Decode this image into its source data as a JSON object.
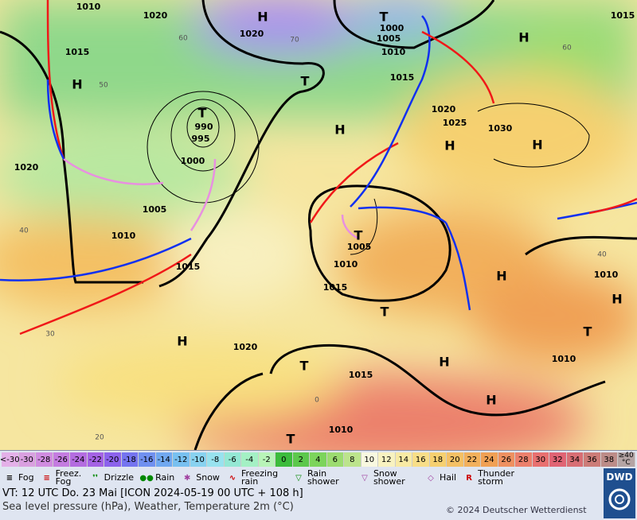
{
  "map": {
    "pressure_labels": [
      "1010",
      "1020",
      "1015",
      "1020",
      "1000",
      "1005",
      "1010",
      "1015",
      "1015",
      "1020",
      "1025",
      "1030",
      "990",
      "995",
      "1000",
      "1020",
      "1005",
      "1010",
      "1015",
      "1005",
      "1010",
      "1015",
      "1020",
      "1015",
      "1010",
      "1010",
      "1010"
    ],
    "system_labels": [
      "H",
      "H",
      "H",
      "H",
      "H",
      "H",
      "H",
      "H",
      "H",
      "H",
      "H",
      "T",
      "T",
      "T",
      "T",
      "T",
      "T",
      "T",
      "T"
    ],
    "isotherm_labels": [
      "60",
      "70",
      "50",
      "40",
      "30",
      "20",
      "40",
      "60",
      "0"
    ]
  },
  "temperature_scale": {
    "low_label": "<-30",
    "values": [
      -30,
      -28,
      -26,
      -24,
      -22,
      -20,
      -18,
      -16,
      -14,
      -12,
      -10,
      -8,
      -6,
      -4,
      -2,
      0,
      2,
      4,
      6,
      8,
      10,
      12,
      14,
      16,
      18,
      20,
      22,
      24,
      26,
      28,
      30,
      32,
      34,
      36,
      38
    ],
    "high_label": "≥40 °C",
    "colors": [
      "#d9a0e0",
      "#d08ce0",
      "#c47ce0",
      "#b46ce0",
      "#a462e4",
      "#8c62ec",
      "#7474f0",
      "#7090f0",
      "#70a8f0",
      "#78c0f0",
      "#88d2f0",
      "#98e2ee",
      "#94e8d4",
      "#a4f0c4",
      "#b8f4b8",
      "#3cbc3c",
      "#5cc84c",
      "#7cd45c",
      "#9cdc70",
      "#bce48c",
      "#f8f8e0",
      "#f8f2c0",
      "#f8eaa4",
      "#f8de88",
      "#f6d070",
      "#f4c064",
      "#f2b05c",
      "#f0a054",
      "#ee9060",
      "#ec806c",
      "#e87070",
      "#e06474",
      "#d86e74",
      "#cc7c78",
      "#bc8c88"
    ],
    "low_color": "#e4b0e8",
    "high_color": "#b4a4a4"
  },
  "weather_legend": [
    "Fog",
    "Freez. Fog",
    "Drizzle",
    "Rain",
    "Snow",
    "Freezing rain",
    "Rain shower",
    "Snow shower",
    "Hail",
    "Thunder storm"
  ],
  "footer": {
    "valid_time": "VT: 12 UTC Do.  23 Mai [ICON 2024-05-19  00 UTC + 108 h]",
    "description": "Sea level pressure (hPa), Weather, Temperature 2m (°C)",
    "copyright": "© 2024 Deutscher Wetterdienst",
    "logo": "DWD"
  }
}
